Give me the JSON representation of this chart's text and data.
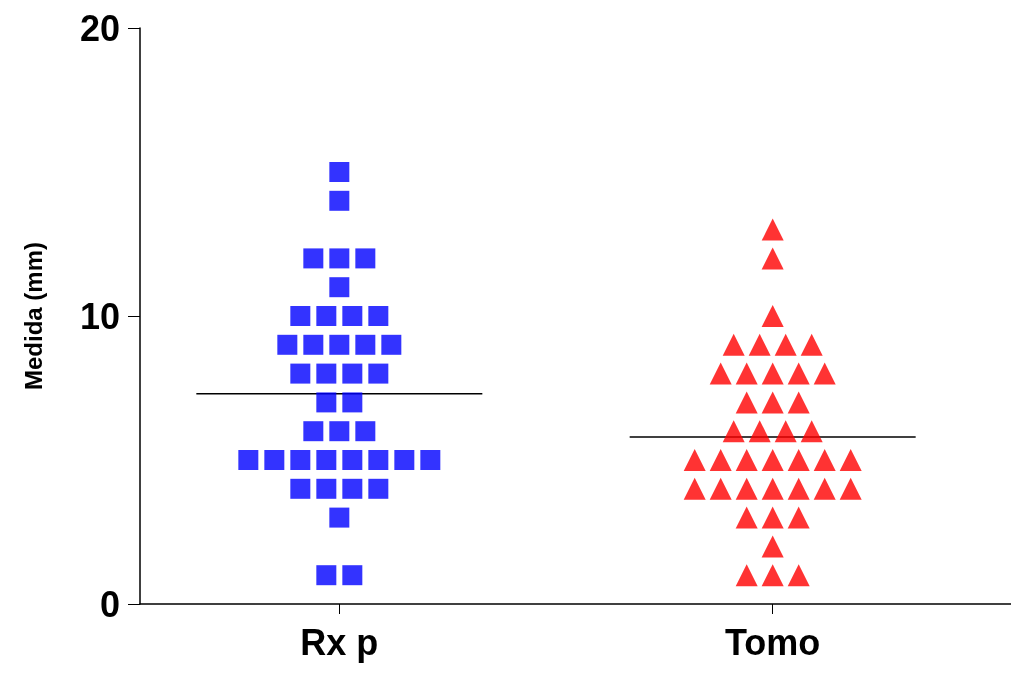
{
  "chart_data": {
    "type": "scatter",
    "ylabel": "Medida (mm)",
    "categories": [
      "Rx p",
      "Tomo"
    ],
    "ylim": [
      0,
      20
    ],
    "yticks": [
      0,
      10,
      20
    ],
    "grid": false,
    "series": [
      {
        "color": "#0000ff",
        "marker": "square",
        "x": [
          "Rx p",
          "Rx p",
          "Rx p",
          "Rx p",
          "Rx p",
          "Rx p",
          "Rx p",
          "Rx p",
          "Rx p",
          "Rx p",
          "Rx p",
          "Rx p",
          "Rx p",
          "Rx p",
          "Rx p",
          "Rx p",
          "Rx p",
          "Rx p",
          "Rx p",
          "Rx p",
          "Rx p",
          "Rx p",
          "Rx p",
          "Rx p",
          "Rx p",
          "Rx p",
          "Rx p",
          "Rx p",
          "Rx p",
          "Rx p",
          "Rx p",
          "Rx p",
          "Rx p",
          "Rx p",
          "Rx p",
          "Rx p",
          "Rx p",
          "Rx p",
          "Rx p"
        ],
        "values": [
          15,
          14,
          12,
          12,
          12,
          11,
          10,
          10,
          10,
          10,
          9,
          9,
          9,
          9,
          9,
          8,
          8,
          8,
          8,
          7,
          7,
          6,
          6,
          6,
          5,
          5,
          5,
          5,
          5,
          5,
          5,
          5,
          4,
          4,
          4,
          4,
          3,
          1,
          1
        ]
      },
      {
        "color": "#ff0000",
        "marker": "triangle",
        "x": [
          "Tomo",
          "Tomo",
          "Tomo",
          "Tomo",
          "Tomo",
          "Tomo",
          "Tomo",
          "Tomo",
          "Tomo",
          "Tomo",
          "Tomo",
          "Tomo",
          "Tomo",
          "Tomo",
          "Tomo",
          "Tomo",
          "Tomo",
          "Tomo",
          "Tomo",
          "Tomo",
          "Tomo",
          "Tomo",
          "Tomo",
          "Tomo",
          "Tomo",
          "Tomo",
          "Tomo",
          "Tomo",
          "Tomo",
          "Tomo",
          "Tomo",
          "Tomo",
          "Tomo",
          "Tomo",
          "Tomo",
          "Tomo",
          "Tomo",
          "Tomo",
          "Tomo",
          "Tomo"
        ],
        "values": [
          13,
          12,
          10,
          9,
          9,
          9,
          9,
          8,
          8,
          8,
          8,
          8,
          7,
          7,
          7,
          6,
          6,
          6,
          6,
          5,
          5,
          5,
          5,
          5,
          5,
          5,
          4,
          4,
          4,
          4,
          4,
          4,
          4,
          3,
          3,
          3,
          2,
          1,
          1,
          1
        ]
      }
    ],
    "ref_lines": [
      {
        "axis": "y",
        "value": 7.3,
        "color": "#000000"
      },
      {
        "axis": "y",
        "value": 5.8,
        "color": "#000000"
      }
    ]
  }
}
